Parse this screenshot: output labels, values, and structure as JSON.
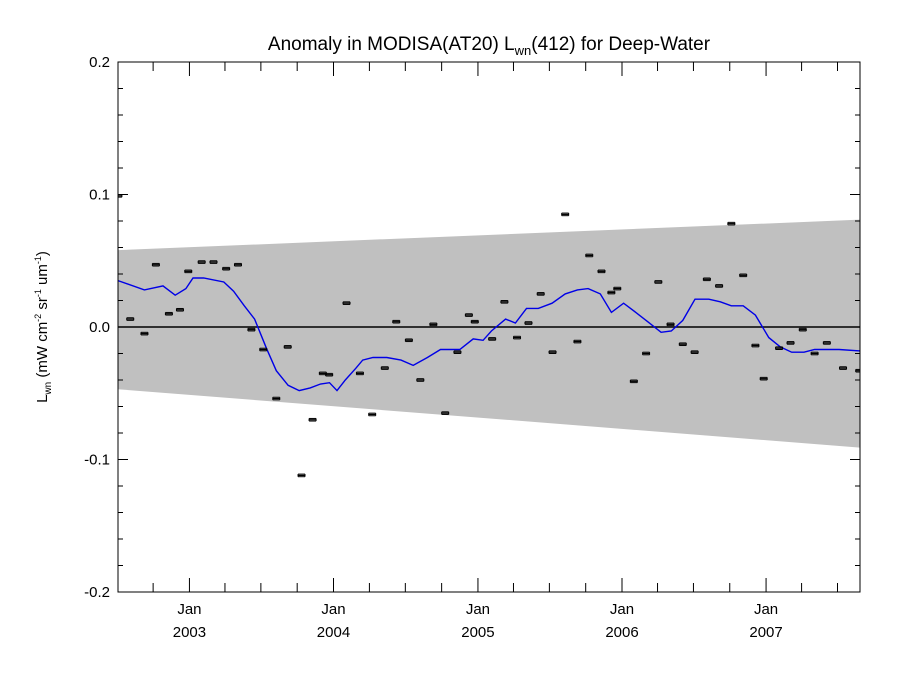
{
  "chart_data": {
    "type": "scatter",
    "title": {
      "prefix": "Anomaly in MODISA(AT20) L",
      "sub": "wn",
      "suffix": "(412) for Deep-Water"
    },
    "ylabel": {
      "base": "L",
      "base_sub": "wn",
      "units_open": " (mW cm",
      "units_sup1": "-2",
      "units_mid1": " sr",
      "units_sup2": "-1",
      "units_mid2": " um",
      "units_sup3": "-1",
      "units_close": ")"
    },
    "xlim": [
      "2002-07-04",
      "2007-08-27"
    ],
    "ylim": [
      -0.2,
      0.2
    ],
    "y_ticks": [
      {
        "value": -0.2,
        "label": "-0.2"
      },
      {
        "value": -0.1,
        "label": "-0.1"
      },
      {
        "value": 0.0,
        "label": "0.0"
      },
      {
        "value": 0.1,
        "label": "0.1"
      },
      {
        "value": 0.2,
        "label": "0.2"
      }
    ],
    "x_ticks": [
      {
        "date": "2003-01-01",
        "month": "Jan",
        "year": "2003"
      },
      {
        "date": "2004-01-01",
        "month": "Jan",
        "year": "2004"
      },
      {
        "date": "2005-01-01",
        "month": "Jan",
        "year": "2005"
      },
      {
        "date": "2006-01-01",
        "month": "Jan",
        "year": "2006"
      },
      {
        "date": "2007-01-01",
        "month": "Jan",
        "year": "2007"
      }
    ],
    "zero_line": true,
    "grid": false,
    "colors": {
      "band": "#c0c0c0",
      "trend": "#0000e6",
      "points": "#000000",
      "zero_line": "#000000"
    },
    "uncertainty_band": {
      "start": {
        "date": "2002-07-04",
        "lower": -0.047,
        "upper": 0.058
      },
      "end": {
        "date": "2007-08-27",
        "lower": -0.091,
        "upper": 0.081
      }
    },
    "points": [
      {
        "date": "2002-07-05",
        "y": 0.099
      },
      {
        "date": "2002-08-04",
        "y": 0.006
      },
      {
        "date": "2002-09-09",
        "y": -0.005
      },
      {
        "date": "2002-10-08",
        "y": 0.047
      },
      {
        "date": "2002-11-10",
        "y": 0.01
      },
      {
        "date": "2002-12-08",
        "y": 0.013
      },
      {
        "date": "2002-12-29",
        "y": 0.042
      },
      {
        "date": "2003-02-01",
        "y": 0.049
      },
      {
        "date": "2003-03-03",
        "y": 0.049
      },
      {
        "date": "2003-04-04",
        "y": 0.044
      },
      {
        "date": "2003-05-04",
        "y": 0.047
      },
      {
        "date": "2003-06-07",
        "y": -0.002
      },
      {
        "date": "2003-07-07",
        "y": -0.017
      },
      {
        "date": "2003-08-09",
        "y": -0.054
      },
      {
        "date": "2003-09-07",
        "y": -0.015
      },
      {
        "date": "2003-10-12",
        "y": -0.112
      },
      {
        "date": "2003-11-09",
        "y": -0.07
      },
      {
        "date": "2003-12-05",
        "y": -0.035
      },
      {
        "date": "2003-12-21",
        "y": -0.036
      },
      {
        "date": "2004-02-03",
        "y": 0.018
      },
      {
        "date": "2004-03-08",
        "y": -0.035
      },
      {
        "date": "2004-04-08",
        "y": -0.066
      },
      {
        "date": "2004-05-10",
        "y": -0.031
      },
      {
        "date": "2004-06-08",
        "y": 0.004
      },
      {
        "date": "2004-07-10",
        "y": -0.01
      },
      {
        "date": "2004-08-08",
        "y": -0.04
      },
      {
        "date": "2004-09-10",
        "y": 0.002
      },
      {
        "date": "2004-10-10",
        "y": -0.065
      },
      {
        "date": "2004-11-10",
        "y": -0.019
      },
      {
        "date": "2004-12-09",
        "y": 0.009
      },
      {
        "date": "2004-12-24",
        "y": 0.004
      },
      {
        "date": "2005-02-06",
        "y": -0.009
      },
      {
        "date": "2005-03-09",
        "y": 0.019
      },
      {
        "date": "2005-04-10",
        "y": -0.008
      },
      {
        "date": "2005-05-09",
        "y": 0.003
      },
      {
        "date": "2005-06-09",
        "y": 0.025
      },
      {
        "date": "2005-07-09",
        "y": -0.019
      },
      {
        "date": "2005-08-10",
        "y": 0.085
      },
      {
        "date": "2005-09-10",
        "y": -0.011
      },
      {
        "date": "2005-10-10",
        "y": 0.054
      },
      {
        "date": "2005-11-10",
        "y": 0.042
      },
      {
        "date": "2005-12-05",
        "y": 0.026
      },
      {
        "date": "2005-12-20",
        "y": 0.029
      },
      {
        "date": "2006-01-31",
        "y": -0.041
      },
      {
        "date": "2006-03-03",
        "y": -0.02
      },
      {
        "date": "2006-04-03",
        "y": 0.034
      },
      {
        "date": "2006-05-04",
        "y": 0.002
      },
      {
        "date": "2006-06-04",
        "y": -0.013
      },
      {
        "date": "2006-07-04",
        "y": -0.019
      },
      {
        "date": "2006-08-04",
        "y": 0.036
      },
      {
        "date": "2006-09-04",
        "y": 0.031
      },
      {
        "date": "2006-10-05",
        "y": 0.078
      },
      {
        "date": "2006-11-04",
        "y": 0.039
      },
      {
        "date": "2006-12-05",
        "y": -0.014
      },
      {
        "date": "2006-12-26",
        "y": -0.039
      },
      {
        "date": "2007-02-03",
        "y": -0.016
      },
      {
        "date": "2007-03-04",
        "y": -0.012
      },
      {
        "date": "2007-04-04",
        "y": -0.002
      },
      {
        "date": "2007-05-04",
        "y": -0.02
      },
      {
        "date": "2007-06-04",
        "y": -0.012
      },
      {
        "date": "2007-07-15",
        "y": -0.031
      },
      {
        "date": "2007-08-25",
        "y": -0.033
      }
    ],
    "trend_line": [
      {
        "date": "2002-07-04",
        "y": 0.035
      },
      {
        "date": "2002-09-09",
        "y": 0.028
      },
      {
        "date": "2002-10-26",
        "y": 0.031
      },
      {
        "date": "2002-11-26",
        "y": 0.024
      },
      {
        "date": "2002-12-23",
        "y": 0.029
      },
      {
        "date": "2003-01-10",
        "y": 0.037
      },
      {
        "date": "2003-02-06",
        "y": 0.037
      },
      {
        "date": "2003-03-29",
        "y": 0.034
      },
      {
        "date": "2003-04-23",
        "y": 0.027
      },
      {
        "date": "2003-05-20",
        "y": 0.016
      },
      {
        "date": "2003-06-15",
        "y": 0.006
      },
      {
        "date": "2003-07-15",
        "y": -0.016
      },
      {
        "date": "2003-08-09",
        "y": -0.033
      },
      {
        "date": "2003-09-08",
        "y": -0.044
      },
      {
        "date": "2003-10-06",
        "y": -0.048
      },
      {
        "date": "2003-11-03",
        "y": -0.046
      },
      {
        "date": "2003-11-29",
        "y": -0.043
      },
      {
        "date": "2003-12-22",
        "y": -0.042
      },
      {
        "date": "2004-01-10",
        "y": -0.048
      },
      {
        "date": "2004-01-31",
        "y": -0.04
      },
      {
        "date": "2004-02-27",
        "y": -0.031
      },
      {
        "date": "2004-03-15",
        "y": -0.025
      },
      {
        "date": "2004-04-10",
        "y": -0.023
      },
      {
        "date": "2004-05-15",
        "y": -0.023
      },
      {
        "date": "2004-06-20",
        "y": -0.025
      },
      {
        "date": "2004-07-21",
        "y": -0.029
      },
      {
        "date": "2004-08-26",
        "y": -0.023
      },
      {
        "date": "2004-09-28",
        "y": -0.017
      },
      {
        "date": "2004-11-16",
        "y": -0.017
      },
      {
        "date": "2004-12-20",
        "y": -0.009
      },
      {
        "date": "2005-01-14",
        "y": -0.01
      },
      {
        "date": "2005-02-04",
        "y": -0.003
      },
      {
        "date": "2005-03-12",
        "y": 0.006
      },
      {
        "date": "2005-04-06",
        "y": 0.003
      },
      {
        "date": "2005-05-04",
        "y": 0.014
      },
      {
        "date": "2005-06-03",
        "y": 0.014
      },
      {
        "date": "2005-07-08",
        "y": 0.018
      },
      {
        "date": "2005-08-10",
        "y": 0.025
      },
      {
        "date": "2005-09-10",
        "y": 0.028
      },
      {
        "date": "2005-10-07",
        "y": 0.029
      },
      {
        "date": "2005-11-07",
        "y": 0.025
      },
      {
        "date": "2005-12-05",
        "y": 0.011
      },
      {
        "date": "2006-01-05",
        "y": 0.018
      },
      {
        "date": "2006-02-05",
        "y": 0.011
      },
      {
        "date": "2006-03-07",
        "y": 0.004
      },
      {
        "date": "2006-04-10",
        "y": -0.004
      },
      {
        "date": "2006-05-06",
        "y": -0.003
      },
      {
        "date": "2006-06-04",
        "y": 0.005
      },
      {
        "date": "2006-07-05",
        "y": 0.021
      },
      {
        "date": "2006-08-09",
        "y": 0.021
      },
      {
        "date": "2006-09-07",
        "y": 0.019
      },
      {
        "date": "2006-10-05",
        "y": 0.016
      },
      {
        "date": "2006-11-04",
        "y": 0.016
      },
      {
        "date": "2006-12-05",
        "y": 0.009
      },
      {
        "date": "2007-01-08",
        "y": -0.008
      },
      {
        "date": "2007-02-06",
        "y": -0.015
      },
      {
        "date": "2007-03-07",
        "y": -0.019
      },
      {
        "date": "2007-04-07",
        "y": -0.019
      },
      {
        "date": "2007-05-04",
        "y": -0.017
      },
      {
        "date": "2007-06-04",
        "y": -0.017
      },
      {
        "date": "2007-07-05",
        "y": -0.017
      },
      {
        "date": "2007-08-27",
        "y": -0.018
      }
    ]
  }
}
